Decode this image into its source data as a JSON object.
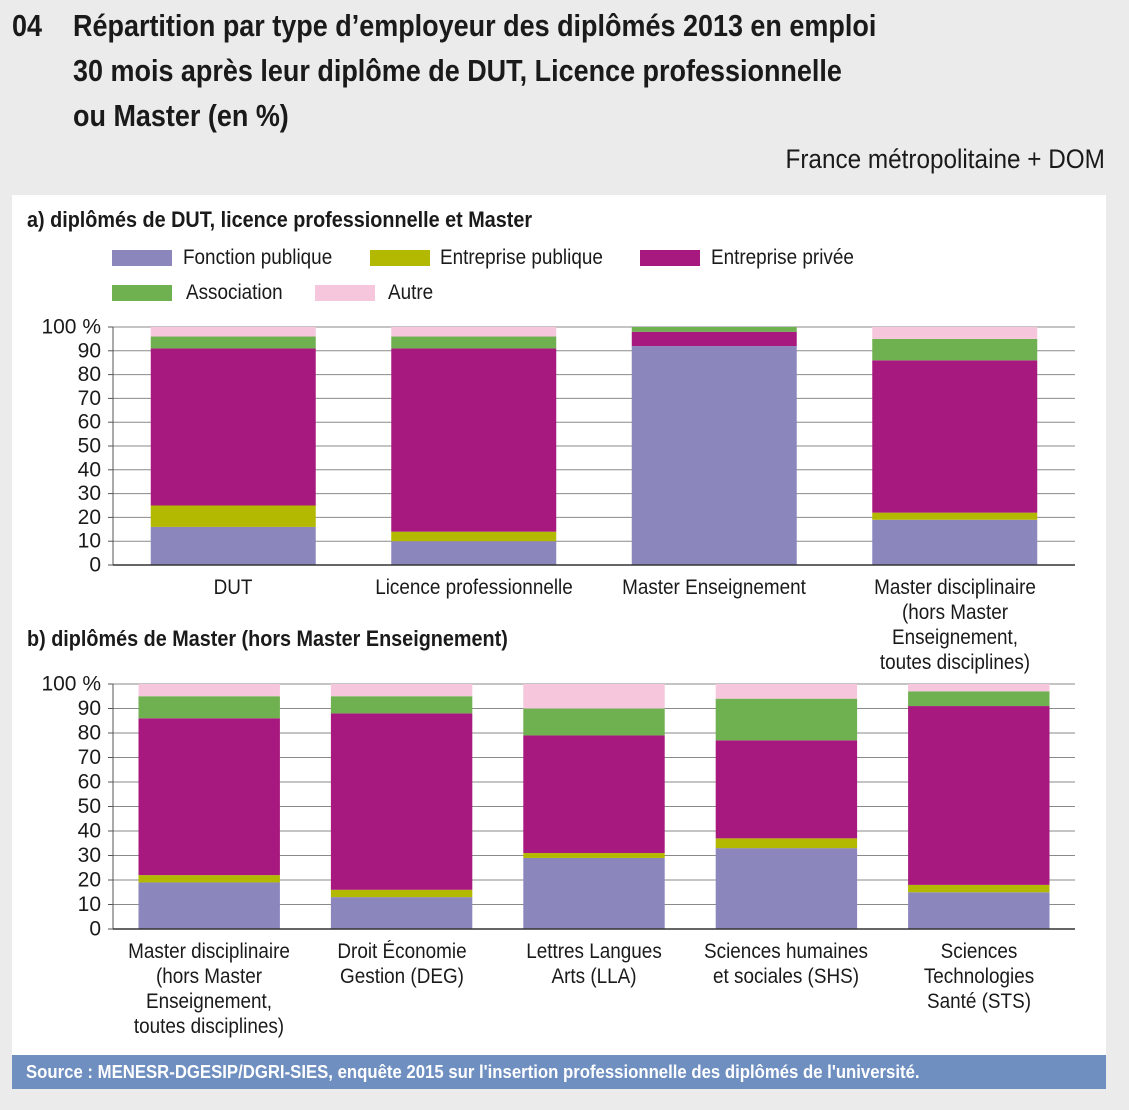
{
  "header": {
    "number": "04",
    "title": [
      "Répartition par type d’employeur des diplômés 2013 en emploi",
      "30 mois après leur diplôme de DUT, Licence professionnelle",
      "ou Master (en %)"
    ],
    "subtitle": "France métropolitaine + DOM"
  },
  "chart_data": [
    {
      "type": "bar",
      "stacked": true,
      "grid": true,
      "title": "a) diplômés de DUT, licence professionnelle et Master",
      "categories": [
        "DUT",
        "Licence professionnelle",
        "Master Enseignement",
        "Master disciplinaire\n(hors Master Enseignement,\ntoutes disciplines)"
      ],
      "series": [
        {
          "name": "Fonction publique",
          "color": "#8b87bd",
          "values": [
            16,
            10,
            92,
            19
          ]
        },
        {
          "name": "Entreprise publique",
          "color": "#b3b800",
          "values": [
            9,
            4,
            0,
            3
          ]
        },
        {
          "name": "Entreprise privée",
          "color": "#a8197f",
          "values": [
            66,
            77,
            6,
            64
          ]
        },
        {
          "name": "Association",
          "color": "#6fb050",
          "values": [
            5,
            5,
            2,
            9
          ]
        },
        {
          "name": "Autre",
          "color": "#f6c6dc",
          "values": [
            4,
            4,
            0,
            5
          ]
        }
      ],
      "ylim": [
        0,
        100
      ],
      "yticks": [
        0,
        10,
        20,
        30,
        40,
        50,
        60,
        70,
        80,
        90,
        {
          "value": 100,
          "label": "100 %"
        }
      ]
    },
    {
      "type": "bar",
      "stacked": true,
      "grid": true,
      "title": "b) diplômés de Master (hors Master Enseignement)",
      "categories": [
        "Master disciplinaire\n(hors Master\nEnseignement,\ntoutes disciplines)",
        "Droit Économie\nGestion (DEG)",
        "Lettres Langues\nArts (LLA)",
        "Sciences humaines\net sociales (SHS)",
        "Sciences\nTechnologies\nSanté (STS)"
      ],
      "series": [
        {
          "color": "#8b87bd",
          "values": [
            19,
            13,
            29,
            33,
            15
          ]
        },
        {
          "color": "#b3b800",
          "values": [
            3,
            3,
            2,
            4,
            3
          ]
        },
        {
          "color": "#a8197f",
          "values": [
            64,
            72,
            48,
            40,
            73
          ]
        },
        {
          "color": "#6fb050",
          "values": [
            9,
            7,
            11,
            17,
            6
          ]
        },
        {
          "color": "#f6c6dc",
          "values": [
            5,
            5,
            10,
            6,
            3
          ]
        }
      ],
      "ylim": [
        0,
        100
      ],
      "yticks": [
        0,
        10,
        20,
        30,
        40,
        50,
        60,
        70,
        80,
        90,
        {
          "value": 100,
          "label": "100 %"
        }
      ]
    }
  ],
  "source": "Source  : MENESR-DGESIP/DGRI-SIES, enquête 2015 sur l'insertion professionnelle des diplômés de l'université."
}
